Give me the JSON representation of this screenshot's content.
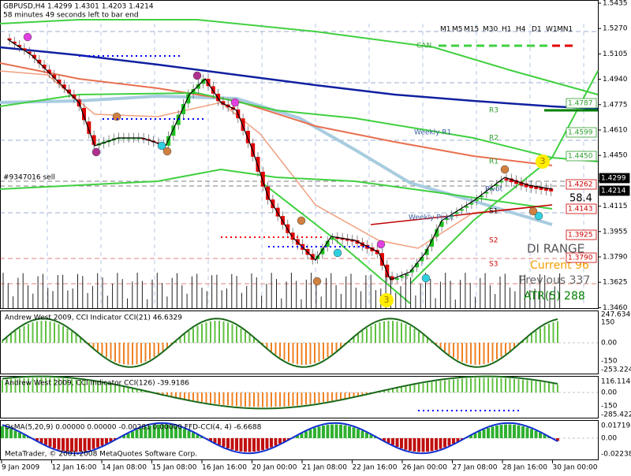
{
  "header": {
    "symbol": "GBPUSD,H4  1.4299 1.4301 1.4203 1.4214",
    "timer": "58 minutes 49 seconds left to bar end"
  },
  "timeframes": [
    "M1",
    "M5",
    "M15",
    "M30",
    "H1",
    "H4",
    "D1",
    "W1",
    "MN1"
  ],
  "can": "CAN",
  "levels": {
    "r3": "R3",
    "r2": "R2",
    "r1": "R1",
    "s1": "S1",
    "s2": "S2",
    "s3": "S3",
    "weekly_r1": "Weekly R1",
    "weekly_pivot": "Weekly Pivot",
    "pivot": "Pivot",
    "order": "#9347016 sell",
    "wave_top": "3",
    "wave_bottom": "3",
    "spread": "58.4"
  },
  "price_axis": [
    "1.5435",
    "1.5270",
    "1.5105",
    "1.4940",
    "1.4775",
    "1.4610",
    "1.4450",
    "1.4285",
    "1.4115",
    "1.3955",
    "1.3790",
    "1.3625",
    "1.3460"
  ],
  "price_tags": [
    "1.4787",
    "1.4599",
    "1.4450",
    "1.4262",
    "1.4299",
    "1.4214",
    "1.4143",
    "1.3925",
    "1.3790"
  ],
  "range_box": {
    "title": "DI RANGE",
    "current": "Current 96",
    "previous": "Previous 337",
    "atr": "ATR(5) 288"
  },
  "indicators": [
    {
      "title": "Andrew West 2009, CCI Indicator  CCI(21) 46.6329",
      "axis": [
        "247.6345",
        "150",
        "0.00",
        "-150",
        "-253.2247"
      ]
    },
    {
      "title": "Andrew West 2009, CCI Indicator  CCI(126) -39.9186",
      "axis": [
        "116.1147",
        "0.00",
        "-150",
        "-285.4227"
      ]
    },
    {
      "title": "OsMA(5,20,9) 0.00000 0.00000 -0.00281 0.00000  FFD-CCI(4, 4) -6.6688",
      "axis": [
        "0.01719",
        "0.00",
        "-0.02238"
      ]
    }
  ],
  "footer": "MetaTrader, © 2001-2008 MetaQuotes Software Corp.",
  "time_axis": [
    "9 Jan 2009",
    "12 Jan 16:00",
    "14 Jan 08:00",
    "15 Jan 08:00",
    "16 Jan 16:00",
    "20 Jan 00:00",
    "21 Jan 08:00",
    "22 Jan 16:00",
    "26 Jan 00:00",
    "27 Jan 08:00",
    "28 Jan 16:00",
    "30 Jan 00:00"
  ]
}
